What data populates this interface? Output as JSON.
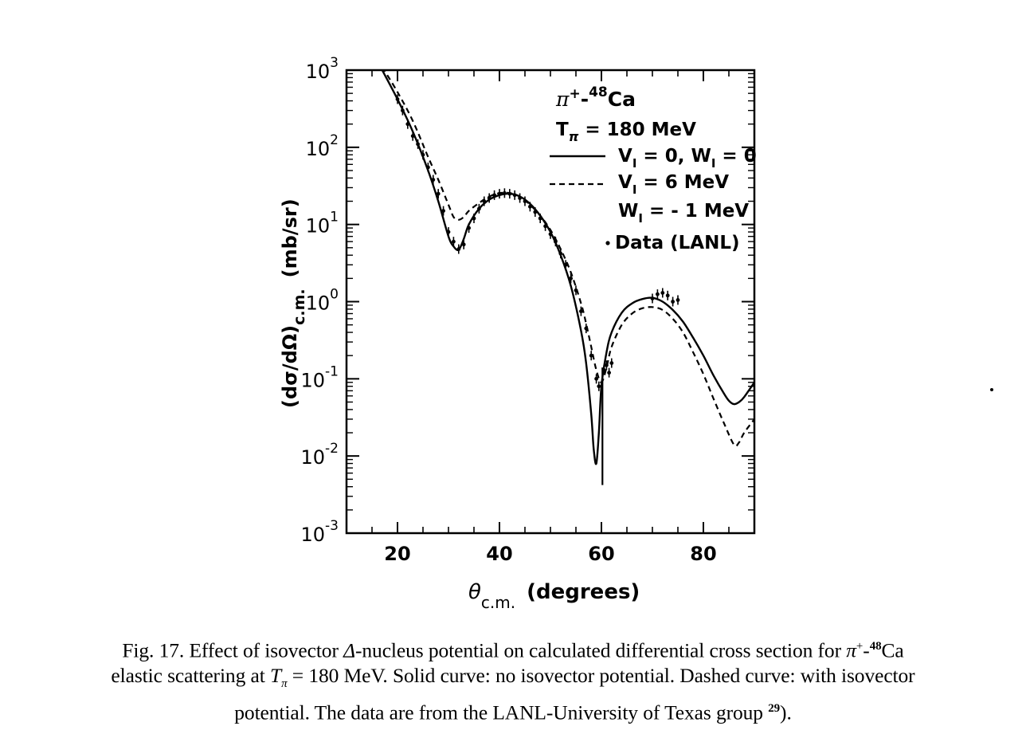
{
  "chart_data": {
    "type": "line",
    "x_axis": {
      "symbol": "θ",
      "subscript": "c.m.",
      "unit": "(degrees)",
      "range": [
        10,
        90
      ],
      "ticks": [
        20,
        40,
        60,
        80
      ],
      "tick_labels": [
        "20",
        "40",
        "60",
        "80"
      ]
    },
    "y_axis": {
      "scale": "log",
      "label": "(dσ/dΩ)c.m.",
      "label_main": "(dσ/dΩ)",
      "label_sub": "c.m.",
      "unit": "(mb/sr)",
      "range": [
        0.001,
        1000
      ],
      "decades": [
        {
          "base": "10",
          "exp": "3",
          "value": 1000
        },
        {
          "base": "10",
          "exp": "2",
          "value": 100
        },
        {
          "base": "10",
          "exp": "1",
          "value": 10
        },
        {
          "base": "10",
          "exp": "0",
          "value": 1
        },
        {
          "base": "10",
          "exp": "-1",
          "value": 0.1
        },
        {
          "base": "10",
          "exp": "-2",
          "value": 0.01
        },
        {
          "base": "10",
          "exp": "-3",
          "value": 0.001
        }
      ]
    },
    "grid": false,
    "legend_position": "top-right",
    "legend": {
      "reaction": {
        "pi": "π",
        "charge": "+",
        "dash": "-",
        "mass": "48",
        "element": "Ca"
      },
      "energy": {
        "main": "T",
        "sub": "π",
        "rest": " = 180 MeV"
      },
      "solid_label": {
        "a": "V",
        "a_sub": "I",
        "b": " = 0, W",
        "b_sub": "I",
        "c": " = 0"
      },
      "dashed_label_1": {
        "a": "V",
        "a_sub": "I",
        "b": " =   6 MeV"
      },
      "dashed_label_2": {
        "a": "W",
        "a_sub": "I",
        "b": " = - 1 MeV"
      },
      "data_label": "Data (LANL)"
    },
    "series": [
      {
        "style": "solid",
        "x": [
          17,
          20,
          23,
          26,
          28,
          30,
          31,
          32,
          33,
          34,
          36,
          38,
          40,
          42,
          44,
          46,
          48,
          50,
          52,
          54,
          56,
          57,
          58,
          58.5,
          59,
          59.5,
          60,
          61,
          62,
          64,
          66,
          68,
          70,
          72,
          74,
          76,
          78,
          80,
          82,
          84,
          85,
          86,
          87,
          88,
          90
        ],
        "y": [
          1000,
          420,
          160,
          50,
          20,
          7,
          5.2,
          4.7,
          6.5,
          10,
          16,
          21,
          24,
          25,
          23,
          18.5,
          13,
          8,
          4,
          1.6,
          0.42,
          0.16,
          0.035,
          0.012,
          0.008,
          0.02,
          0.08,
          0.22,
          0.4,
          0.72,
          0.95,
          1.08,
          1.12,
          1.0,
          0.78,
          0.55,
          0.34,
          0.2,
          0.11,
          0.065,
          0.052,
          0.047,
          0.05,
          0.058,
          0.09
        ]
      },
      {
        "style": "dashed",
        "x": [
          17,
          20,
          23,
          26,
          28,
          30,
          31,
          32,
          33,
          34,
          36,
          38,
          40,
          42,
          44,
          46,
          48,
          50,
          52,
          54,
          56,
          57,
          58,
          59,
          60,
          61,
          62,
          64,
          66,
          68,
          70,
          72,
          74,
          76,
          78,
          80,
          82,
          84,
          86,
          87,
          88,
          90
        ],
        "y": [
          1100,
          520,
          220,
          75,
          38,
          18,
          12.5,
          11.5,
          12.5,
          15,
          19,
          23,
          25.5,
          25.5,
          23,
          18,
          13,
          8.5,
          4.8,
          2.4,
          0.95,
          0.52,
          0.26,
          0.13,
          0.09,
          0.14,
          0.26,
          0.5,
          0.7,
          0.82,
          0.85,
          0.78,
          0.6,
          0.4,
          0.22,
          0.115,
          0.055,
          0.027,
          0.014,
          0.015,
          0.02,
          0.03
        ]
      },
      {
        "style": "points",
        "x": [
          20,
          21,
          22,
          23,
          24,
          25,
          26,
          27,
          28,
          29,
          30,
          31,
          32,
          33,
          34,
          35,
          36,
          37,
          38,
          39,
          40,
          41,
          42,
          43,
          44,
          45,
          46,
          47,
          48,
          49,
          50,
          51,
          52,
          53,
          54,
          55,
          56,
          57,
          58,
          59,
          59.5,
          60.5,
          61,
          61.5,
          62,
          70,
          71,
          72,
          73,
          74,
          75
        ],
        "y": [
          420,
          300,
          200,
          140,
          110,
          80,
          55,
          38,
          25,
          15,
          8,
          6,
          4.8,
          5.5,
          9,
          12,
          16,
          20,
          22,
          24,
          25,
          25.5,
          25,
          24,
          22,
          20,
          17,
          14.5,
          12,
          9.5,
          7.5,
          6,
          4.2,
          3,
          2,
          1.4,
          0.75,
          0.45,
          0.2,
          0.1,
          0.08,
          0.13,
          0.15,
          0.12,
          0.16,
          1.1,
          1.25,
          1.3,
          1.2,
          1.0,
          1.05
        ]
      }
    ]
  },
  "caption": {
    "line1_a": "Fig. 17. Effect of isovector ",
    "line1_delta": "Δ",
    "line1_b": "-nucleus potential on calculated differential cross section for ",
    "line1_pi": "π",
    "line1_plus": "+",
    "line1_c": "-",
    "line1_mass": "48",
    "line1_ca": "Ca",
    "line2_a": "elastic scattering at ",
    "line2_T": "T",
    "line2_pi": "π",
    "line2_b": " = 180 MeV. Solid curve: no isovector potential. Dashed curve: with isovector",
    "line3_a": "potential. The data are from the LANL-University of Texas group ",
    "line3_ref": "29",
    "line3_b": ")."
  }
}
